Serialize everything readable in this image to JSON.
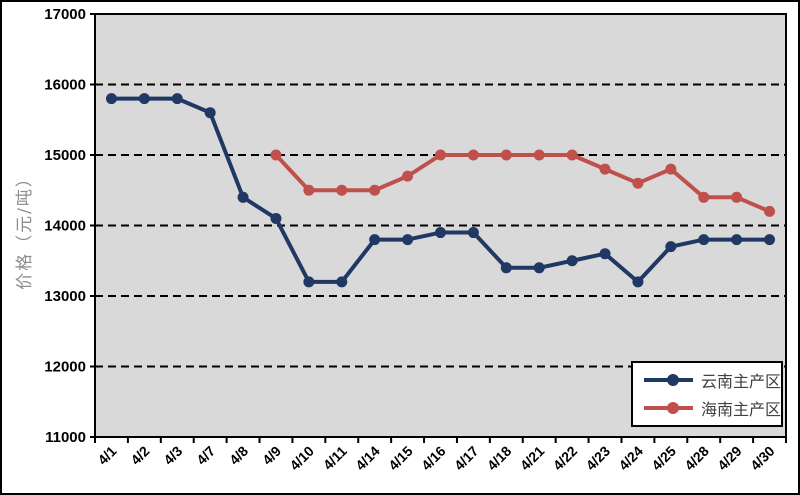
{
  "chart_data": {
    "type": "line",
    "title": "",
    "xlabel": "",
    "ylabel": "价格（元/吨）",
    "ylim": [
      11000,
      17000
    ],
    "yticks": [
      17000,
      16000,
      15000,
      14000,
      13000,
      12000,
      11000
    ],
    "grid": "horizontal-dashed",
    "plot_bg": "#D9D9D9",
    "axis_color": "#000000",
    "legend_position": "inside-bottom-right",
    "categories": [
      "4/1",
      "4/2",
      "4/3",
      "4/7",
      "4/8",
      "4/9",
      "4/10",
      "4/11",
      "4/14",
      "4/15",
      "4/16",
      "4/17",
      "4/18",
      "4/21",
      "4/22",
      "4/23",
      "4/24",
      "4/25",
      "4/28",
      "4/29",
      "4/30"
    ],
    "series": [
      {
        "name": "云南主产区",
        "color": "#1F3864",
        "values": [
          15800,
          15800,
          15800,
          15600,
          14400,
          14100,
          13200,
          13200,
          13800,
          13800,
          13900,
          13900,
          13400,
          13400,
          13500,
          13600,
          13200,
          13700,
          13800,
          13800,
          13800
        ]
      },
      {
        "name": "海南主产区",
        "color": "#C0504D",
        "values": [
          null,
          null,
          null,
          null,
          null,
          15000,
          14500,
          14500,
          14500,
          14700,
          15000,
          15000,
          15000,
          15000,
          15000,
          14800,
          14600,
          14800,
          14400,
          14400,
          14200
        ]
      }
    ]
  }
}
